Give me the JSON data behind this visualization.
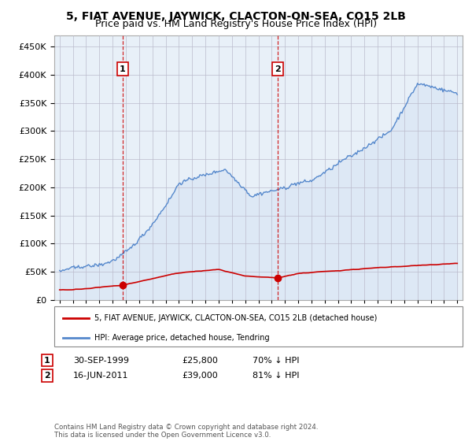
{
  "title": "5, FIAT AVENUE, JAYWICK, CLACTON-ON-SEA, CO15 2LB",
  "subtitle": "Price paid vs. HM Land Registry's House Price Index (HPI)",
  "background_color": "#ffffff",
  "plot_bg_color": "#e8f0f8",
  "grid_color": "#bbbbcc",
  "hpi_color": "#5588cc",
  "hpi_fill_color": "#dde8f5",
  "price_color": "#cc0000",
  "sale1_date_num": 1999.75,
  "sale1_price": 25800,
  "sale2_date_num": 2011.46,
  "sale2_price": 39000,
  "legend_line1": "5, FIAT AVENUE, JAYWICK, CLACTON-ON-SEA, CO15 2LB (detached house)",
  "legend_line2": "HPI: Average price, detached house, Tendring",
  "table_row1": [
    "1",
    "30-SEP-1999",
    "£25,800",
    "70% ↓ HPI"
  ],
  "table_row2": [
    "2",
    "16-JUN-2011",
    "£39,000",
    "81% ↓ HPI"
  ],
  "footnote": "Contains HM Land Registry data © Crown copyright and database right 2024.\nThis data is licensed under the Open Government Licence v3.0.",
  "title_fontsize": 10,
  "subtitle_fontsize": 9,
  "tick_fontsize": 8,
  "ylim": [
    0,
    470000
  ],
  "yticks": [
    0,
    50000,
    100000,
    150000,
    200000,
    250000,
    300000,
    350000,
    400000,
    450000
  ],
  "xlim_start": 1994.6,
  "xlim_end": 2025.4,
  "seed": 42
}
